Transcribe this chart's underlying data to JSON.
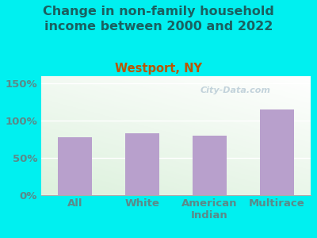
{
  "title": "Change in non-family household\nincome between 2000 and 2022",
  "subtitle": "Westport, NY",
  "categories": [
    "All",
    "White",
    "American\nIndian",
    "Multirace"
  ],
  "values": [
    78,
    83,
    80,
    115
  ],
  "bar_color": "#b8a0cc",
  "outer_bg": "#00f0f0",
  "plot_bg_color": "#e8f4e8",
  "title_color": "#1a6060",
  "subtitle_color": "#bb5500",
  "tick_color": "#5a8a8a",
  "yticks": [
    0,
    50,
    100,
    150
  ],
  "ytick_labels": [
    "0%",
    "50%",
    "100%",
    "150%"
  ],
  "ylim": [
    0,
    160
  ],
  "watermark": "City-Data.com",
  "title_fontsize": 11.5,
  "subtitle_fontsize": 10.5,
  "tick_fontsize": 9.5
}
